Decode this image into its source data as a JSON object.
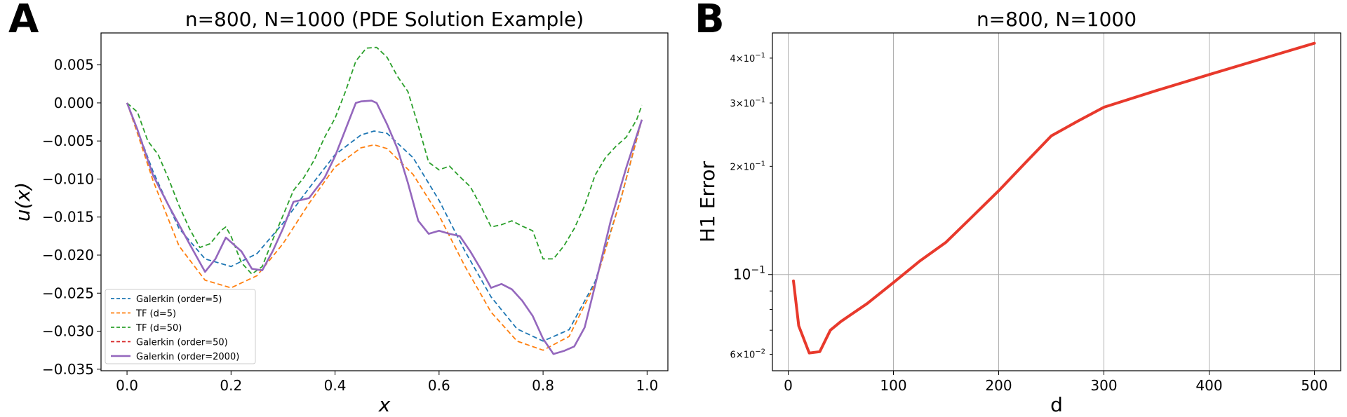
{
  "panels": {
    "a": {
      "letter": "A"
    },
    "b": {
      "letter": "B"
    }
  },
  "chart_data": [
    {
      "type": "line",
      "title": "n=800, N=1000 (PDE Solution Example)",
      "xlabel": "x",
      "ylabel": "u(x)",
      "xlim": [
        -0.05,
        1.04
      ],
      "ylim": [
        -0.0352,
        0.0092
      ],
      "xticks": [
        0.0,
        0.2,
        0.4,
        0.6,
        0.8,
        1.0
      ],
      "xtick_labels": [
        "0.0",
        "0.2",
        "0.4",
        "0.6",
        "0.8",
        "1.0"
      ],
      "yticks": [
        0.005,
        0.0,
        -0.005,
        -0.01,
        -0.015,
        -0.02,
        -0.025,
        -0.03,
        -0.035
      ],
      "ytick_labels": [
        "0.005",
        "0.000",
        "−0.005",
        "−0.010",
        "−0.015",
        "−0.020",
        "−0.025",
        "−0.030",
        "−0.035"
      ],
      "grid": false,
      "legend_position": "lower-left",
      "series": [
        {
          "name": "Galerkin (order=5)",
          "color": "#1f77b4",
          "style": "dashed",
          "x": [
            0.0,
            0.02,
            0.05,
            0.1,
            0.15,
            0.2,
            0.25,
            0.3,
            0.35,
            0.4,
            0.45,
            0.475,
            0.5,
            0.55,
            0.6,
            0.65,
            0.7,
            0.75,
            0.8,
            0.85,
            0.9,
            0.95,
            0.99
          ],
          "y": [
            0.0,
            -0.0035,
            -0.009,
            -0.0165,
            -0.0205,
            -0.0215,
            -0.0198,
            -0.0158,
            -0.0112,
            -0.0068,
            -0.0042,
            -0.0037,
            -0.004,
            -0.0072,
            -0.0128,
            -0.0195,
            -0.0255,
            -0.0297,
            -0.0313,
            -0.0298,
            -0.0235,
            -0.0125,
            -0.0022
          ]
        },
        {
          "name": "TF (d=5)",
          "color": "#ff7f0e",
          "style": "dashed",
          "x": [
            0.0,
            0.02,
            0.05,
            0.1,
            0.15,
            0.2,
            0.25,
            0.3,
            0.35,
            0.4,
            0.45,
            0.475,
            0.5,
            0.55,
            0.6,
            0.65,
            0.7,
            0.75,
            0.8,
            0.85,
            0.9,
            0.95,
            0.99
          ],
          "y": [
            0.0,
            -0.004,
            -0.0102,
            -0.0188,
            -0.0233,
            -0.0243,
            -0.0227,
            -0.0185,
            -0.0132,
            -0.0084,
            -0.0059,
            -0.0055,
            -0.006,
            -0.0094,
            -0.0148,
            -0.0215,
            -0.0275,
            -0.0313,
            -0.0325,
            -0.0307,
            -0.0238,
            -0.0125,
            -0.0022
          ]
        },
        {
          "name": "TF (d=50)",
          "color": "#2ca02c",
          "style": "dashed",
          "x": [
            0.0,
            0.02,
            0.04,
            0.06,
            0.08,
            0.1,
            0.12,
            0.14,
            0.16,
            0.18,
            0.19,
            0.2,
            0.22,
            0.24,
            0.26,
            0.28,
            0.3,
            0.32,
            0.34,
            0.36,
            0.38,
            0.4,
            0.42,
            0.44,
            0.46,
            0.48,
            0.5,
            0.52,
            0.54,
            0.56,
            0.58,
            0.6,
            0.62,
            0.64,
            0.66,
            0.68,
            0.7,
            0.72,
            0.74,
            0.76,
            0.78,
            0.8,
            0.82,
            0.84,
            0.86,
            0.88,
            0.9,
            0.92,
            0.94,
            0.96,
            0.98,
            0.99
          ],
          "y": [
            0.0,
            -0.0012,
            -0.005,
            -0.0068,
            -0.01,
            -0.0135,
            -0.0165,
            -0.019,
            -0.0185,
            -0.0168,
            -0.0163,
            -0.0175,
            -0.021,
            -0.0225,
            -0.0215,
            -0.018,
            -0.0148,
            -0.0115,
            -0.0098,
            -0.0075,
            -0.0045,
            -0.002,
            0.0015,
            0.0055,
            0.0072,
            0.0073,
            0.006,
            0.0035,
            0.0015,
            -0.003,
            -0.0078,
            -0.0088,
            -0.0083,
            -0.0097,
            -0.011,
            -0.0135,
            -0.0163,
            -0.016,
            -0.0155,
            -0.0162,
            -0.0168,
            -0.0205,
            -0.0205,
            -0.0188,
            -0.0165,
            -0.0135,
            -0.0095,
            -0.0072,
            -0.0057,
            -0.0045,
            -0.0022,
            -0.0003
          ]
        },
        {
          "name": "Galerkin (order=50)",
          "color": "#d62728",
          "style": "dashed",
          "x": [
            0.0,
            0.02,
            0.05,
            0.08,
            0.12,
            0.15,
            0.17,
            0.19,
            0.22,
            0.24,
            0.26,
            0.28,
            0.3,
            0.32,
            0.35,
            0.38,
            0.4,
            0.42,
            0.44,
            0.45,
            0.47,
            0.48,
            0.5,
            0.52,
            0.54,
            0.56,
            0.58,
            0.6,
            0.62,
            0.64,
            0.66,
            0.68,
            0.7,
            0.72,
            0.74,
            0.76,
            0.78,
            0.8,
            0.82,
            0.84,
            0.86,
            0.88,
            0.9,
            0.93,
            0.96,
            0.99
          ],
          "y": [
            0.0,
            -0.0035,
            -0.0095,
            -0.0135,
            -0.0185,
            -0.0222,
            -0.0205,
            -0.0177,
            -0.0195,
            -0.0218,
            -0.022,
            -0.0195,
            -0.0165,
            -0.013,
            -0.0125,
            -0.0098,
            -0.007,
            -0.0035,
            0.0,
            0.0002,
            0.0003,
            0.0,
            -0.0028,
            -0.006,
            -0.0105,
            -0.0155,
            -0.0172,
            -0.0168,
            -0.0172,
            -0.0175,
            -0.0195,
            -0.0218,
            -0.0243,
            -0.0238,
            -0.0245,
            -0.026,
            -0.028,
            -0.031,
            -0.033,
            -0.0326,
            -0.032,
            -0.0295,
            -0.024,
            -0.0155,
            -0.0085,
            -0.0022
          ]
        },
        {
          "name": "Galerkin (order=2000)",
          "color": "#9467bd",
          "style": "solid",
          "x": [
            0.0,
            0.02,
            0.05,
            0.08,
            0.12,
            0.15,
            0.17,
            0.19,
            0.22,
            0.24,
            0.26,
            0.28,
            0.3,
            0.32,
            0.35,
            0.38,
            0.4,
            0.42,
            0.44,
            0.45,
            0.47,
            0.48,
            0.5,
            0.52,
            0.54,
            0.56,
            0.58,
            0.6,
            0.62,
            0.64,
            0.66,
            0.68,
            0.7,
            0.72,
            0.74,
            0.76,
            0.78,
            0.8,
            0.82,
            0.84,
            0.86,
            0.88,
            0.9,
            0.93,
            0.96,
            0.99
          ],
          "y": [
            0.0,
            -0.0035,
            -0.0095,
            -0.0135,
            -0.0185,
            -0.0222,
            -0.0205,
            -0.0177,
            -0.0195,
            -0.0218,
            -0.022,
            -0.0195,
            -0.0165,
            -0.013,
            -0.0125,
            -0.0098,
            -0.007,
            -0.0035,
            0.0,
            0.0002,
            0.0003,
            0.0,
            -0.0028,
            -0.006,
            -0.0105,
            -0.0155,
            -0.0172,
            -0.0168,
            -0.0172,
            -0.0175,
            -0.0195,
            -0.0218,
            -0.0243,
            -0.0238,
            -0.0245,
            -0.026,
            -0.028,
            -0.031,
            -0.033,
            -0.0326,
            -0.032,
            -0.0295,
            -0.024,
            -0.0155,
            -0.0085,
            -0.0022
          ]
        }
      ]
    },
    {
      "type": "line",
      "title": "n=800, N=1000",
      "xlabel": "d",
      "ylabel": "H1 Error",
      "yscale": "log",
      "xlim": [
        -15,
        525
      ],
      "ylim": [
        0.054,
        0.47
      ],
      "xticks": [
        0,
        100,
        200,
        300,
        400,
        500
      ],
      "xtick_labels": [
        "0",
        "100",
        "200",
        "300",
        "400",
        "500"
      ],
      "major_ytick": {
        "value": 0.1,
        "base": "10",
        "exp": "−1"
      },
      "minor_ytick_labels": [
        {
          "value": 0.06,
          "mant": "6",
          "exp": "−2"
        },
        {
          "value": 0.2,
          "mant": "2",
          "exp": "−1"
        },
        {
          "value": 0.3,
          "mant": "3",
          "exp": "−1"
        },
        {
          "value": 0.4,
          "mant": "4",
          "exp": "−1"
        }
      ],
      "minor_yticks": [
        0.06,
        0.07,
        0.08,
        0.09,
        0.2,
        0.3,
        0.4
      ],
      "grid": true,
      "series": [
        {
          "name": "H1 Error",
          "color": "#e8392c",
          "style": "solid",
          "x": [
            5,
            10,
            20,
            30,
            40,
            50,
            60,
            75,
            100,
            125,
            150,
            175,
            200,
            225,
            250,
            275,
            300,
            350,
            400,
            450,
            500
          ],
          "y": [
            0.096,
            0.072,
            0.0605,
            0.061,
            0.07,
            0.074,
            0.0775,
            0.083,
            0.095,
            0.109,
            0.123,
            0.145,
            0.171,
            0.204,
            0.243,
            0.267,
            0.292,
            0.325,
            0.36,
            0.398,
            0.44
          ]
        }
      ]
    }
  ]
}
